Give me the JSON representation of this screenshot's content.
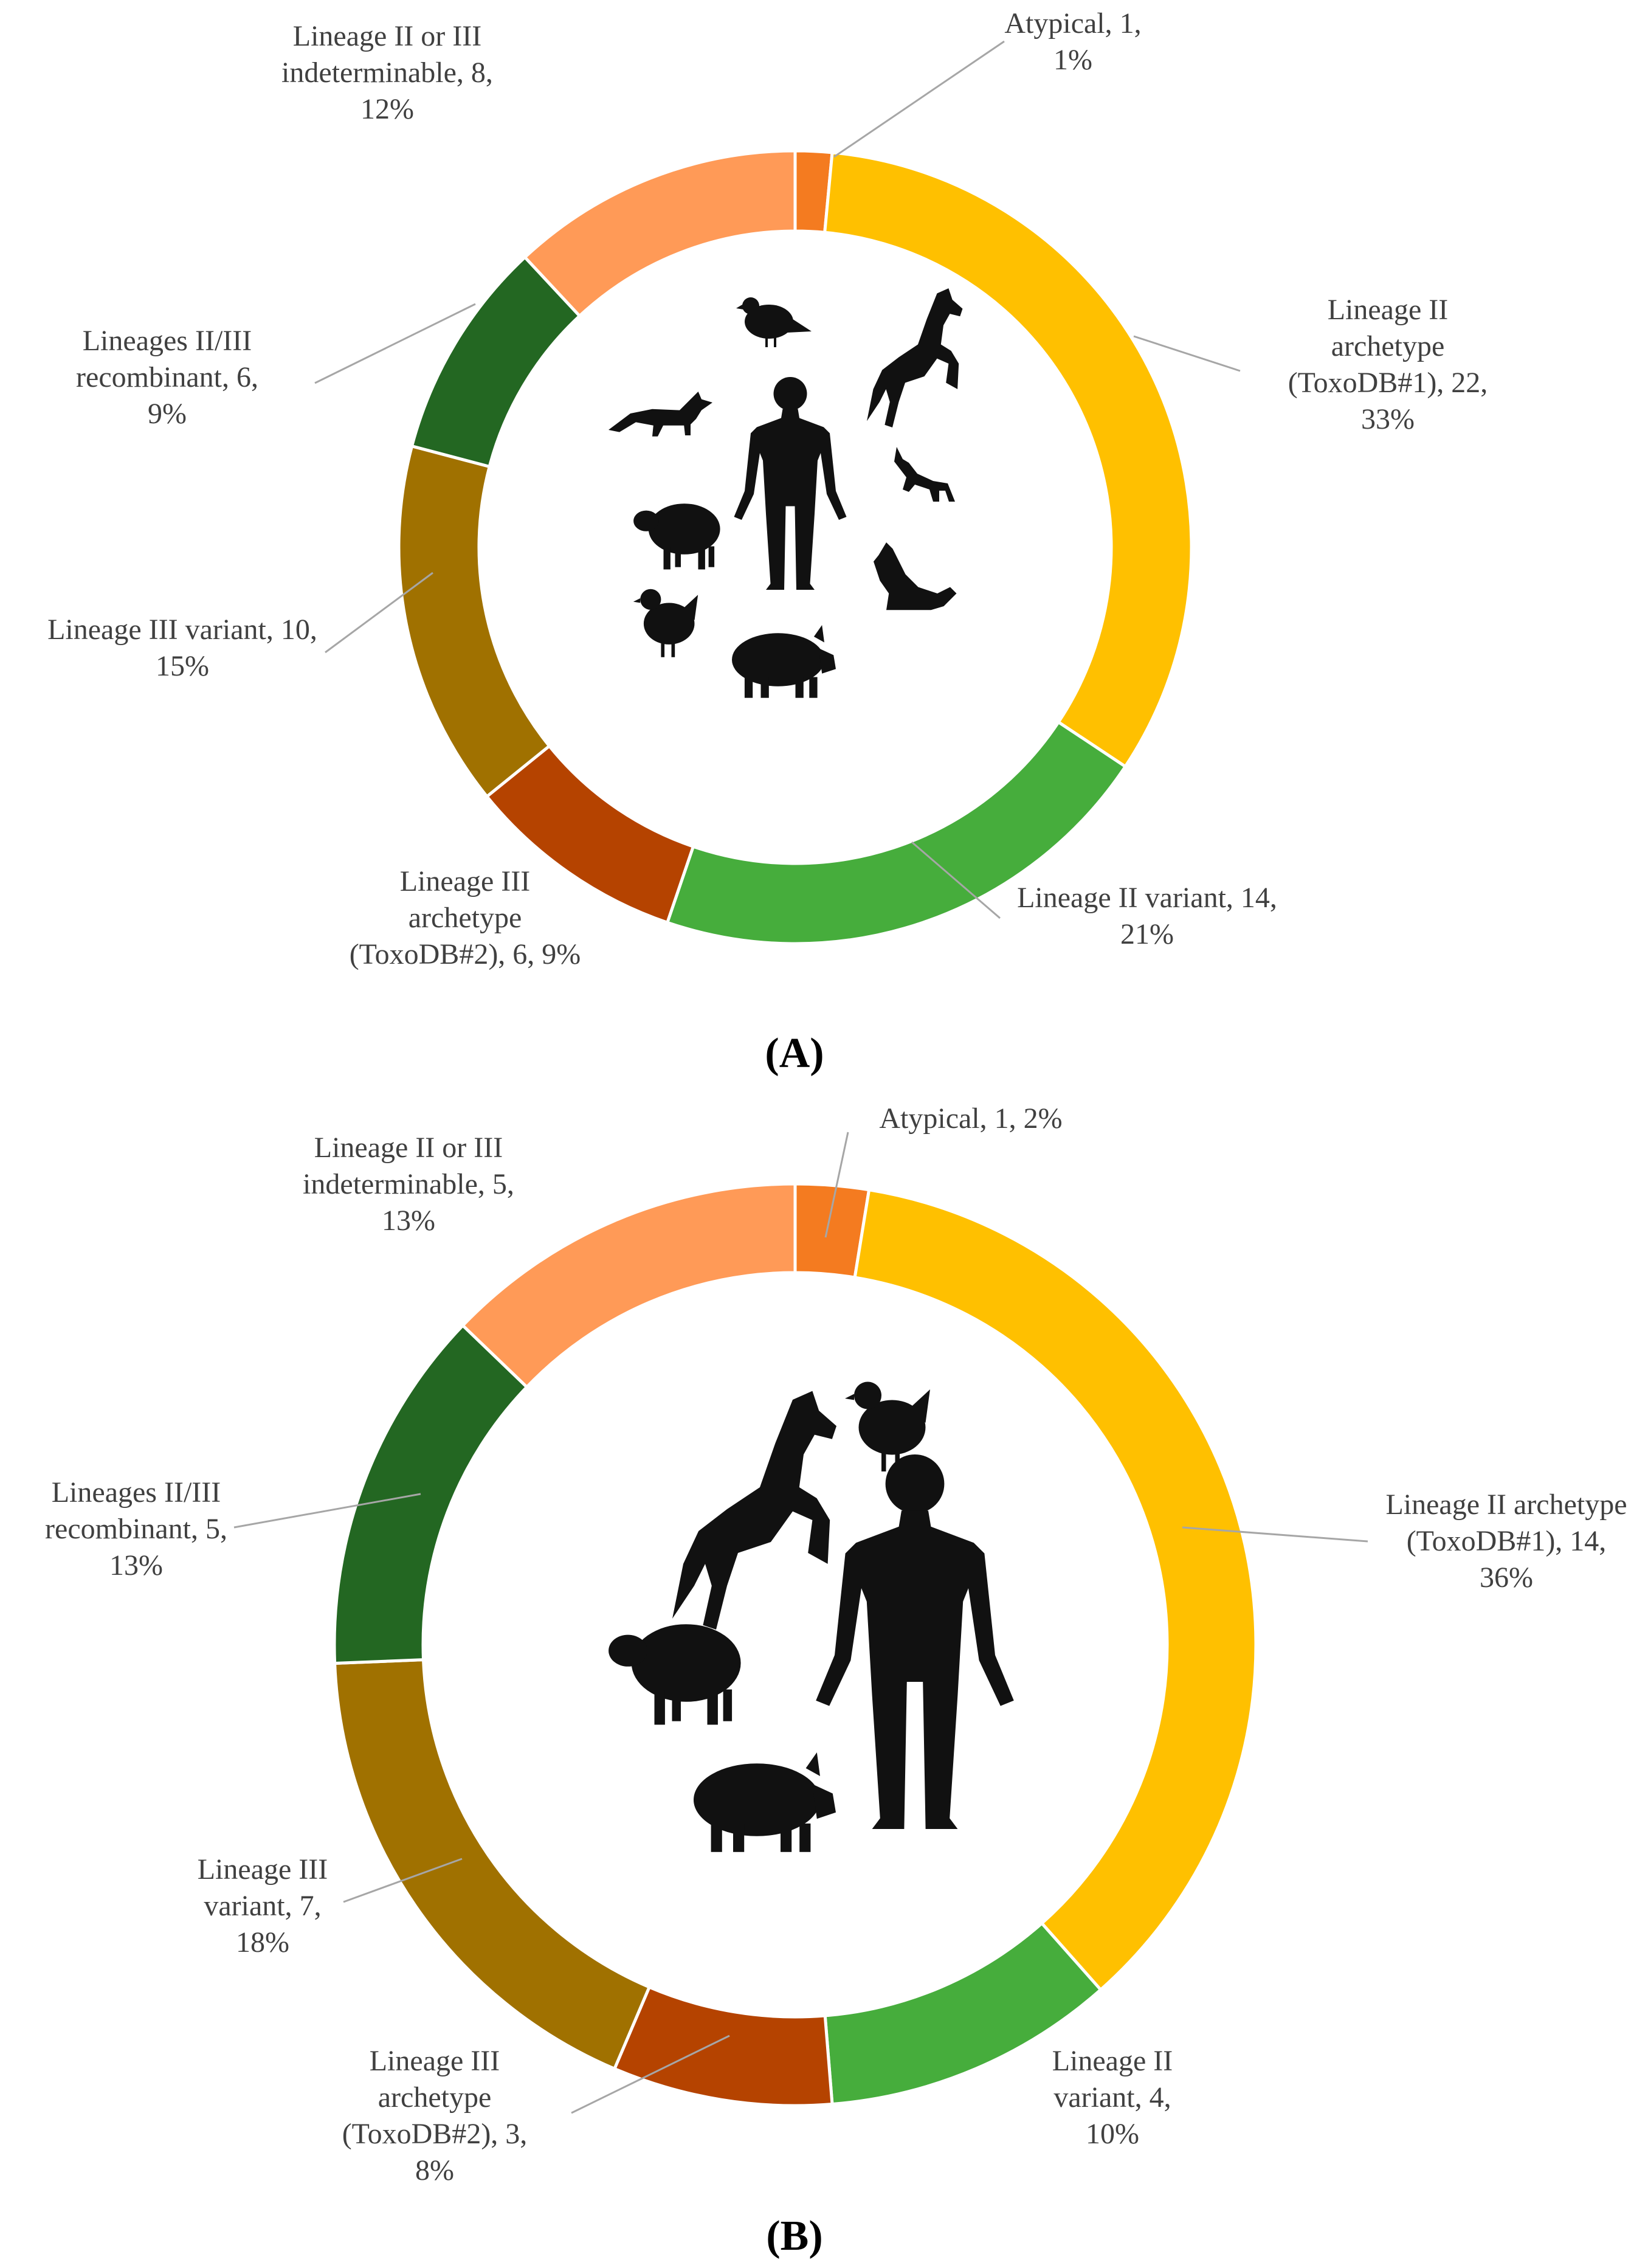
{
  "chart_data": [
    {
      "type": "pie",
      "donut": true,
      "panel_label": "A",
      "series": [
        {
          "name": "Atypical",
          "count": 1,
          "percent": "1%",
          "label": [
            "Atypical, 1,",
            "1%"
          ],
          "color": "#F47B20"
        },
        {
          "name": "Lineage II archetype (ToxoDB#1)",
          "count": 22,
          "percent": "33%",
          "label": [
            "Lineage II",
            "archetype",
            "(ToxoDB#1), 22,",
            "33%"
          ],
          "color": "#FFC000"
        },
        {
          "name": "Lineage II variant",
          "count": 14,
          "percent": "21%",
          "label": [
            "Lineage II variant, 14,",
            "21%"
          ],
          "color": "#46AD3C"
        },
        {
          "name": "Lineage III archetype (ToxoDB#2)",
          "count": 6,
          "percent": "9%",
          "label": [
            "Lineage III",
            "archetype",
            "(ToxoDB#2), 6, 9%"
          ],
          "color": "#B54300"
        },
        {
          "name": "Lineage III variant",
          "count": 10,
          "percent": "15%",
          "label": [
            "Lineage III variant, 10,",
            "15%"
          ],
          "color": "#A07100"
        },
        {
          "name": "Lineages II/III recombinant",
          "count": 6,
          "percent": "9%",
          "label": [
            "Lineages II/III",
            "recombinant, 6,",
            "9%"
          ],
          "color": "#236722"
        },
        {
          "name": "Lineage II or III indeterminable",
          "count": 8,
          "percent": "12%",
          "label": [
            "Lineage II or III",
            "indeterminable, 8,",
            "12%"
          ],
          "color": "#FF9A57"
        }
      ],
      "hosts_pictured": [
        "bird-icon",
        "horse-icon",
        "fox-icon",
        "human-icon",
        "dog-icon",
        "sheep-icon",
        "wolf-icon",
        "chicken-icon",
        "pig-icon"
      ]
    },
    {
      "type": "pie",
      "donut": true,
      "panel_label": "B",
      "series": [
        {
          "name": "Atypical",
          "count": 1,
          "percent": "2%",
          "label": [
            "Atypical, 1, 2%"
          ],
          "color": "#F47B20"
        },
        {
          "name": "Lineage II archetype (ToxoDB#1)",
          "count": 14,
          "percent": "36%",
          "label": [
            "Lineage II archetype",
            "(ToxoDB#1), 14,",
            "36%"
          ],
          "color": "#FFC000"
        },
        {
          "name": "Lineage II variant",
          "count": 4,
          "percent": "10%",
          "label": [
            "Lineage II",
            "variant, 4,",
            "10%"
          ],
          "color": "#46AD3C"
        },
        {
          "name": "Lineage III archetype (ToxoDB#2)",
          "count": 3,
          "percent": "8%",
          "label": [
            "Lineage III",
            "archetype",
            "(ToxoDB#2), 3,",
            "8%"
          ],
          "color": "#B54300"
        },
        {
          "name": "Lineage III variant",
          "count": 7,
          "percent": "18%",
          "label": [
            "Lineage III",
            "variant, 7,",
            "18%"
          ],
          "color": "#A07100"
        },
        {
          "name": "Lineages II/III recombinant",
          "count": 5,
          "percent": "13%",
          "label": [
            "Lineages II/III",
            "recombinant, 5,",
            "13%"
          ],
          "color": "#236722"
        },
        {
          "name": "Lineage II or III indeterminable",
          "count": 5,
          "percent": "13%",
          "label": [
            "Lineage II or III",
            "indeterminable, 5,",
            "13%"
          ],
          "color": "#FF9A57"
        }
      ],
      "hosts_pictured": [
        "horse-icon",
        "chicken-icon",
        "sheep-icon",
        "human-icon",
        "pig-icon"
      ]
    }
  ],
  "captions": {
    "a": "(A)",
    "b": "(B)"
  }
}
